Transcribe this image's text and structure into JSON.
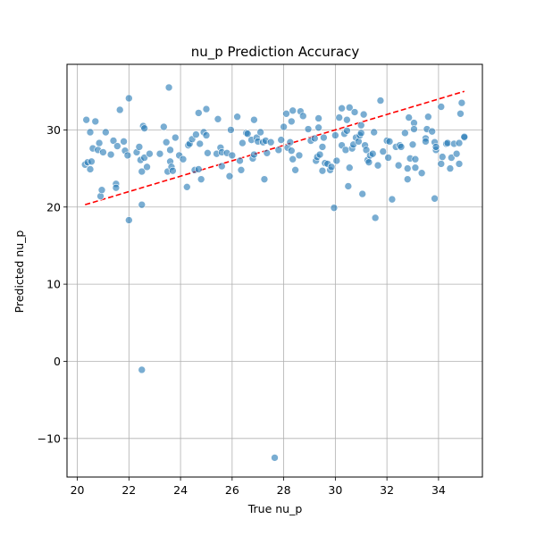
{
  "chart_data": {
    "type": "scatter",
    "title": "nu_p Prediction Accuracy",
    "xlabel": "True nu_p",
    "ylabel": "Predicted nu_p",
    "xlim": [
      19.6,
      35.7
    ],
    "ylim": [
      -15,
      38.5
    ],
    "xticks": [
      20,
      22,
      24,
      26,
      28,
      30,
      32,
      34
    ],
    "yticks": [
      -10,
      0,
      10,
      20,
      30
    ],
    "ytick_labels": [
      "−10",
      "0",
      "10",
      "20",
      "30"
    ],
    "grid": true,
    "point_color": "#1f77b4",
    "line_color": "#ff0000",
    "reference_line": {
      "style": "dashed",
      "x": [
        20.3,
        35.0
      ],
      "y": [
        20.3,
        35.0
      ]
    },
    "points": [
      [
        20.3,
        25.5
      ],
      [
        20.35,
        31.3
      ],
      [
        20.4,
        25.8
      ],
      [
        20.5,
        24.9
      ],
      [
        20.5,
        29.7
      ],
      [
        20.55,
        25.9
      ],
      [
        20.6,
        27.6
      ],
      [
        20.7,
        31.1
      ],
      [
        20.8,
        27.4
      ],
      [
        20.85,
        28.3
      ],
      [
        20.9,
        21.4
      ],
      [
        20.95,
        22.2
      ],
      [
        21.0,
        27.1
      ],
      [
        21.1,
        29.7
      ],
      [
        21.3,
        26.8
      ],
      [
        21.4,
        28.6
      ],
      [
        21.5,
        23.0
      ],
      [
        21.5,
        22.5
      ],
      [
        21.55,
        27.9
      ],
      [
        21.65,
        32.6
      ],
      [
        21.8,
        28.5
      ],
      [
        21.85,
        27.3
      ],
      [
        21.95,
        26.7
      ],
      [
        22.0,
        34.1
      ],
      [
        22.0,
        18.3
      ],
      [
        22.3,
        27.1
      ],
      [
        22.4,
        27.8
      ],
      [
        22.45,
        26.1
      ],
      [
        22.5,
        20.3
      ],
      [
        22.5,
        -1.1
      ],
      [
        22.5,
        24.6
      ],
      [
        22.55,
        30.5
      ],
      [
        22.6,
        30.2
      ],
      [
        22.6,
        26.4
      ],
      [
        22.7,
        25.2
      ],
      [
        22.8,
        26.9
      ],
      [
        23.2,
        26.9
      ],
      [
        23.35,
        30.4
      ],
      [
        23.45,
        28.4
      ],
      [
        23.5,
        24.6
      ],
      [
        23.55,
        35.5
      ],
      [
        23.6,
        27.4
      ],
      [
        23.6,
        25.9
      ],
      [
        23.65,
        25.2
      ],
      [
        23.7,
        24.7
      ],
      [
        23.8,
        29.0
      ],
      [
        23.95,
        26.7
      ],
      [
        24.1,
        26.2
      ],
      [
        24.25,
        22.6
      ],
      [
        24.3,
        28.0
      ],
      [
        24.35,
        28.2
      ],
      [
        24.45,
        28.8
      ],
      [
        24.55,
        24.8
      ],
      [
        24.6,
        29.4
      ],
      [
        24.7,
        32.2
      ],
      [
        24.7,
        24.9
      ],
      [
        24.75,
        28.2
      ],
      [
        24.8,
        23.6
      ],
      [
        24.9,
        29.7
      ],
      [
        25.0,
        29.3
      ],
      [
        25.0,
        32.7
      ],
      [
        25.05,
        27.0
      ],
      [
        25.4,
        26.9
      ],
      [
        25.45,
        31.4
      ],
      [
        25.55,
        27.7
      ],
      [
        25.6,
        27.1
      ],
      [
        25.6,
        25.3
      ],
      [
        25.8,
        27.0
      ],
      [
        25.9,
        24.0
      ],
      [
        25.95,
        30.0
      ],
      [
        26.0,
        26.7
      ],
      [
        26.2,
        31.7
      ],
      [
        26.3,
        26.0
      ],
      [
        26.35,
        24.8
      ],
      [
        26.4,
        28.3
      ],
      [
        26.55,
        29.6
      ],
      [
        26.6,
        29.5
      ],
      [
        26.75,
        28.7
      ],
      [
        26.8,
        26.3
      ],
      [
        26.85,
        31.3
      ],
      [
        26.85,
        26.8
      ],
      [
        26.95,
        29.0
      ],
      [
        27.0,
        28.5
      ],
      [
        27.1,
        29.7
      ],
      [
        27.2,
        28.4
      ],
      [
        27.25,
        23.6
      ],
      [
        27.3,
        28.6
      ],
      [
        27.35,
        27.0
      ],
      [
        27.5,
        28.4
      ],
      [
        27.65,
        -12.5
      ],
      [
        27.8,
        27.4
      ],
      [
        27.9,
        28.7
      ],
      [
        28.0,
        30.4
      ],
      [
        28.1,
        32.1
      ],
      [
        28.15,
        27.7
      ],
      [
        28.25,
        28.4
      ],
      [
        28.3,
        31.1
      ],
      [
        28.3,
        27.3
      ],
      [
        28.35,
        26.2
      ],
      [
        28.35,
        32.5
      ],
      [
        28.45,
        24.8
      ],
      [
        28.6,
        26.7
      ],
      [
        28.65,
        32.4
      ],
      [
        28.75,
        31.8
      ],
      [
        28.95,
        30.1
      ],
      [
        29.05,
        28.6
      ],
      [
        29.2,
        28.9
      ],
      [
        29.25,
        26.0
      ],
      [
        29.3,
        26.5
      ],
      [
        29.35,
        30.3
      ],
      [
        29.35,
        31.5
      ],
      [
        29.4,
        26.8
      ],
      [
        29.5,
        24.7
      ],
      [
        29.5,
        27.8
      ],
      [
        29.55,
        29.0
      ],
      [
        29.6,
        25.7
      ],
      [
        29.7,
        25.6
      ],
      [
        29.8,
        24.8
      ],
      [
        29.85,
        25.2
      ],
      [
        29.95,
        19.9
      ],
      [
        30.0,
        29.3
      ],
      [
        30.05,
        26.0
      ],
      [
        30.15,
        31.6
      ],
      [
        30.25,
        28.0
      ],
      [
        30.25,
        32.8
      ],
      [
        30.35,
        29.5
      ],
      [
        30.4,
        27.4
      ],
      [
        30.45,
        29.9
      ],
      [
        30.45,
        31.3
      ],
      [
        30.5,
        22.7
      ],
      [
        30.55,
        25.1
      ],
      [
        30.55,
        32.9
      ],
      [
        30.65,
        27.6
      ],
      [
        30.7,
        28.1
      ],
      [
        30.75,
        32.3
      ],
      [
        30.8,
        29.0
      ],
      [
        30.9,
        28.5
      ],
      [
        30.95,
        29.3
      ],
      [
        31.0,
        30.6
      ],
      [
        31.0,
        29.6
      ],
      [
        31.05,
        21.7
      ],
      [
        31.1,
        32.0
      ],
      [
        31.15,
        28.0
      ],
      [
        31.2,
        27.4
      ],
      [
        31.25,
        26.1
      ],
      [
        31.3,
        25.8
      ],
      [
        31.35,
        26.7
      ],
      [
        31.45,
        26.9
      ],
      [
        31.5,
        29.7
      ],
      [
        31.55,
        18.6
      ],
      [
        31.65,
        25.4
      ],
      [
        31.75,
        33.8
      ],
      [
        31.85,
        27.2
      ],
      [
        32.0,
        28.6
      ],
      [
        32.05,
        26.4
      ],
      [
        32.1,
        28.5
      ],
      [
        32.2,
        21.0
      ],
      [
        32.35,
        27.8
      ],
      [
        32.45,
        25.4
      ],
      [
        32.5,
        28.0
      ],
      [
        32.55,
        27.8
      ],
      [
        32.7,
        29.6
      ],
      [
        32.8,
        23.6
      ],
      [
        32.8,
        25.0
      ],
      [
        32.85,
        31.6
      ],
      [
        32.9,
        26.3
      ],
      [
        33.0,
        28.1
      ],
      [
        33.05,
        30.9
      ],
      [
        33.05,
        30.1
      ],
      [
        33.1,
        26.2
      ],
      [
        33.1,
        25.1
      ],
      [
        33.35,
        24.4
      ],
      [
        33.5,
        28.9
      ],
      [
        33.5,
        28.5
      ],
      [
        33.55,
        30.1
      ],
      [
        33.6,
        31.7
      ],
      [
        33.75,
        29.8
      ],
      [
        33.85,
        21.1
      ],
      [
        33.85,
        28.4
      ],
      [
        33.9,
        27.4
      ],
      [
        33.9,
        27.8
      ],
      [
        34.1,
        33.0
      ],
      [
        34.1,
        25.6
      ],
      [
        34.15,
        26.5
      ],
      [
        34.3,
        28.2
      ],
      [
        34.35,
        28.3
      ],
      [
        34.45,
        25.0
      ],
      [
        34.5,
        26.4
      ],
      [
        34.6,
        28.2
      ],
      [
        34.7,
        26.9
      ],
      [
        34.8,
        25.6
      ],
      [
        34.8,
        28.3
      ],
      [
        34.85,
        32.1
      ],
      [
        34.9,
        33.5
      ],
      [
        35.0,
        29.0
      ],
      [
        35.0,
        29.1
      ]
    ]
  }
}
